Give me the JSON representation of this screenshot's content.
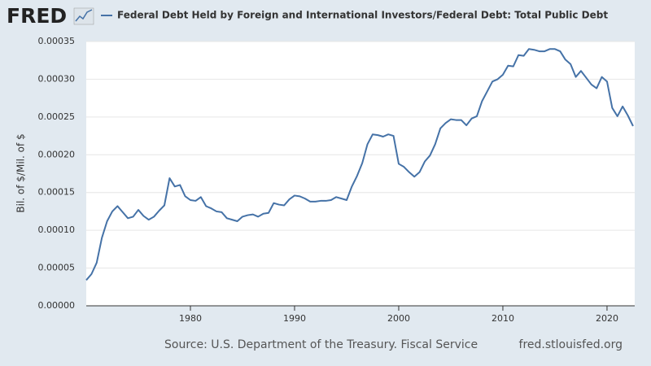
{
  "logo": "FRED",
  "chart_data": {
    "type": "line",
    "y_label": "Bil. of $/Mil. of $",
    "source": "Source: U.S. Department of the Treasury. Fiscal Service",
    "site": "fred.stlouisfed.org",
    "grid": true,
    "xlim": [
      1970,
      2022.66
    ],
    "xticks": [
      1980,
      1990,
      2000,
      2010,
      2020
    ],
    "ylim": [
      0,
      0.00035
    ],
    "yticks": [
      {
        "value": 0,
        "label": "0.00000"
      },
      {
        "value": 5e-05,
        "label": "0.00005"
      },
      {
        "value": 0.0001,
        "label": "0.00010"
      },
      {
        "value": 0.00015,
        "label": "0.00015"
      },
      {
        "value": 0.0002,
        "label": "0.00020"
      },
      {
        "value": 0.00025,
        "label": "0.00025"
      },
      {
        "value": 0.0003,
        "label": "0.00030"
      },
      {
        "value": 0.00035,
        "label": "0.00035"
      }
    ],
    "x": [
      1970.0,
      1970.5,
      1971.0,
      1971.5,
      1972.0,
      1972.5,
      1973.0,
      1973.5,
      1974.0,
      1974.5,
      1975.0,
      1975.5,
      1976.0,
      1976.5,
      1977.0,
      1977.5,
      1978.0,
      1978.5,
      1979.0,
      1979.5,
      1980.0,
      1980.5,
      1981.0,
      1981.5,
      1982.0,
      1982.5,
      1983.0,
      1983.5,
      1984.0,
      1984.5,
      1985.0,
      1985.5,
      1986.0,
      1986.5,
      1987.0,
      1987.5,
      1988.0,
      1988.5,
      1989.0,
      1989.5,
      1990.0,
      1990.5,
      1991.0,
      1991.5,
      1992.0,
      1992.5,
      1993.0,
      1993.5,
      1994.0,
      1994.5,
      1995.0,
      1995.5,
      1996.0,
      1996.5,
      1997.0,
      1997.5,
      1998.0,
      1998.5,
      1999.0,
      1999.5,
      2000.0,
      2000.5,
      2001.0,
      2001.5,
      2002.0,
      2002.5,
      2003.0,
      2003.5,
      2004.0,
      2004.5,
      2005.0,
      2005.5,
      2006.0,
      2006.5,
      2007.0,
      2007.5,
      2008.0,
      2008.5,
      2009.0,
      2009.5,
      2010.0,
      2010.5,
      2011.0,
      2011.5,
      2012.0,
      2012.5,
      2013.0,
      2013.5,
      2014.0,
      2014.5,
      2015.0,
      2015.5,
      2016.0,
      2016.5,
      2017.0,
      2017.5,
      2018.0,
      2018.5,
      2019.0,
      2019.5,
      2020.0,
      2020.5,
      2021.0,
      2021.5,
      2022.0,
      2022.5
    ],
    "series": [
      {
        "name": "Federal Debt Held by Foreign and International Investors/Federal Debt: Total Public Debt",
        "color": "#4572a7",
        "values": [
          3.4e-05,
          4.2e-05,
          5.7e-05,
          9e-05,
          0.000112,
          0.000125,
          0.000132,
          0.000124,
          0.000116,
          0.000118,
          0.000127,
          0.000119,
          0.000114,
          0.000118,
          0.000126,
          0.000133,
          0.000169,
          0.000158,
          0.00016,
          0.000145,
          0.00014,
          0.000139,
          0.000144,
          0.000132,
          0.000129,
          0.000125,
          0.000124,
          0.000116,
          0.000114,
          0.000112,
          0.000118,
          0.00012,
          0.000121,
          0.000118,
          0.000122,
          0.000123,
          0.000136,
          0.000134,
          0.000133,
          0.000141,
          0.000146,
          0.000145,
          0.000142,
          0.000138,
          0.000138,
          0.000139,
          0.000139,
          0.00014,
          0.000144,
          0.000142,
          0.00014,
          0.000158,
          0.000172,
          0.000189,
          0.000214,
          0.000227,
          0.000226,
          0.000224,
          0.000227,
          0.000225,
          0.000188,
          0.000184,
          0.000177,
          0.000171,
          0.000177,
          0.000191,
          0.000199,
          0.000214,
          0.000235,
          0.000242,
          0.000247,
          0.000246,
          0.000246,
          0.000239,
          0.000248,
          0.000251,
          0.000271,
          0.000284,
          0.000297,
          0.0003,
          0.000306,
          0.000318,
          0.000317,
          0.000332,
          0.000331,
          0.00034,
          0.000339,
          0.000337,
          0.000337,
          0.00034,
          0.00034,
          0.000337,
          0.000326,
          0.00032,
          0.000303,
          0.000311,
          0.000302,
          0.000293,
          0.000288,
          0.000303,
          0.000297,
          0.000262,
          0.000251,
          0.000264,
          0.000252,
          0.000238
        ]
      }
    ]
  }
}
